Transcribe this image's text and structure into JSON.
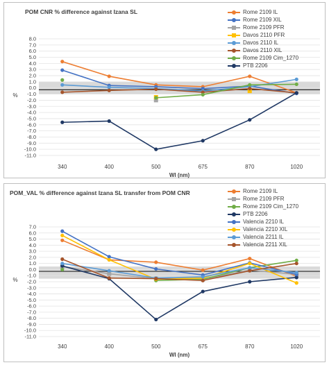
{
  "chart_data": [
    {
      "type": "line",
      "title": "POM CNR % difference against Izana SL",
      "xlabel": "Wl (nm)",
      "ylabel": "%",
      "categories": [
        "340",
        "400",
        "500",
        "675",
        "870",
        "1020"
      ],
      "ylim": [
        -11.0,
        8.0
      ],
      "yticks": [
        "8.0",
        "7.0",
        "6.0",
        "5.0",
        "4.0",
        "3.0",
        "2.0",
        "1.0",
        "0.0",
        "-1.0",
        "-2.0",
        "-3.0",
        "-4.0",
        "-5.0",
        "-6.0",
        "-7.0",
        "-8.0",
        "-9.0",
        "-10.0",
        "-11.0"
      ],
      "band": [
        -1.0,
        1.0
      ],
      "refline": -0.3,
      "legend_position": "right",
      "series": [
        {
          "name": "Rome 2109 IL",
          "color": "#ed7d31",
          "marker": "circle",
          "values": [
            4.3,
            1.9,
            0.5,
            0.2,
            1.9,
            -0.8
          ]
        },
        {
          "name": "Rome 2109 XIL",
          "color": "#4472c4",
          "marker": "circle",
          "values": [
            2.9,
            0.4,
            0.2,
            -0.1,
            0.3,
            -0.9
          ]
        },
        {
          "name": "Rome 2109 PFR",
          "color": "#a5a5a5",
          "marker": "square",
          "values": [
            null,
            null,
            -2.0,
            null,
            null,
            null
          ]
        },
        {
          "name": "Davos 2110 PFR",
          "color": "#ffc000",
          "marker": "square",
          "values": [
            null,
            null,
            -1.5,
            null,
            -0.5,
            null
          ]
        },
        {
          "name": "Davos 2110 IL",
          "color": "#5b9bd5",
          "marker": "circle",
          "values": [
            0.5,
            0.1,
            -0.1,
            -0.5,
            0.2,
            1.4
          ]
        },
        {
          "name": "Davos 2110 XIL",
          "color": "#a5542b",
          "marker": "circle",
          "values": [
            -0.7,
            -0.4,
            -0.2,
            -0.7,
            -0.1,
            -0.8
          ]
        },
        {
          "name": "Rome  2109 Cim_1270",
          "color": "#70ad47",
          "marker": "circle",
          "values": [
            1.3,
            null,
            -1.6,
            -1.1,
            0.5,
            0.6
          ]
        },
        {
          "name": "PTB 2206",
          "color": "#1f3864",
          "marker": "circle",
          "values": [
            -5.6,
            -5.4,
            -10.0,
            -8.6,
            -5.2,
            -0.8
          ]
        }
      ]
    },
    {
      "type": "line",
      "title": "POM_VAL % difference against Izana SL transfer from POM CNR",
      "xlabel": "Wl (nm)",
      "ylabel": "%",
      "categories": [
        "340",
        "400",
        "500",
        "675",
        "870",
        "1020"
      ],
      "ylim": [
        -11.0,
        7.0
      ],
      "yticks": [
        "7.0",
        "6.0",
        "5.0",
        "4.0",
        "3.0",
        "2.0",
        "1.0",
        "0.0",
        "-1.0",
        "-2.0",
        "-3.0",
        "-4.0",
        "-5.0",
        "-6.0",
        "-7.0",
        "-8.0",
        "-9.0",
        "-10.0",
        "-11.0"
      ],
      "band": [
        -1.5,
        0.5
      ],
      "refline": -0.3,
      "legend_position": "right",
      "series": [
        {
          "name": "Rome  2109 IL",
          "color": "#ed7d31",
          "marker": "circle",
          "values": [
            4.8,
            1.6,
            1.2,
            -0.1,
            1.8,
            -1.1
          ]
        },
        {
          "name": "Rome  2109 PFR",
          "color": "#a5a5a5",
          "marker": "square",
          "values": [
            0.5,
            -0.7,
            -1.5,
            -1.6,
            -0.1,
            -0.8
          ]
        },
        {
          "name": "Rome  2109 Cim_1270",
          "color": "#70ad47",
          "marker": "circle",
          "values": [
            0.0,
            null,
            -1.8,
            -1.6,
            0.3,
            1.5
          ]
        },
        {
          "name": "PTB 2206",
          "color": "#1f3864",
          "marker": "circle",
          "values": [
            0.6,
            -1.5,
            -8.2,
            -3.6,
            -2.0,
            -1.3
          ]
        },
        {
          "name": "Valencia  2210 IL",
          "color": "#4472c4",
          "marker": "circle",
          "values": [
            6.3,
            2.1,
            0.1,
            -0.9,
            1.1,
            -0.8
          ]
        },
        {
          "name": "Valencia  2210 XIL",
          "color": "#ffc000",
          "marker": "circle",
          "values": [
            5.6,
            1.6,
            -1.6,
            -1.4,
            1.0,
            -2.2
          ]
        },
        {
          "name": "Valencia  2211 IL",
          "color": "#5b9bd5",
          "marker": "circle",
          "values": [
            1.0,
            -0.2,
            -1.4,
            -1.2,
            0.3,
            -0.5
          ]
        },
        {
          "name": "Valencia  2211 XIL",
          "color": "#a5542b",
          "marker": "circle",
          "values": [
            1.7,
            -1.4,
            -1.5,
            -1.8,
            -0.2,
            1.0
          ]
        }
      ]
    }
  ]
}
